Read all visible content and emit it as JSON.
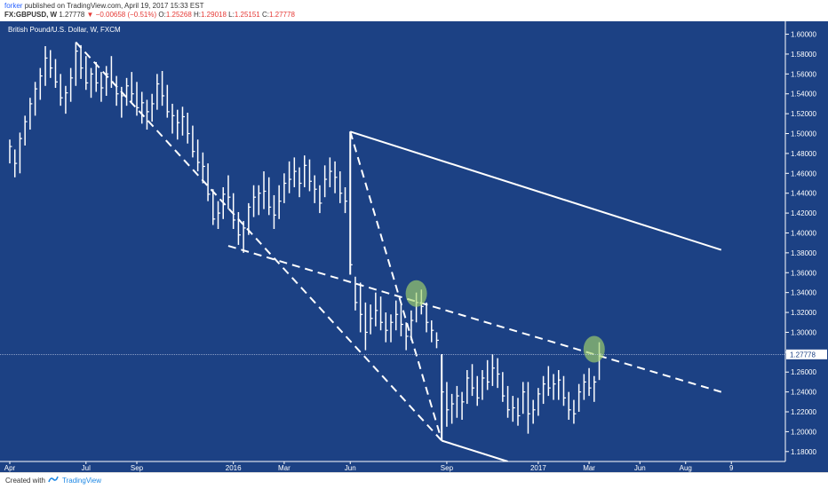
{
  "header": {
    "user": "forker",
    "published": "published on TradingView.com, April 19, 2017 15:33 EST",
    "symbol": "FX:GBPUSD, W",
    "last": "1.27778",
    "change": "−0.00658 (−0.51%)",
    "o_label": "O:",
    "o_value": "1.25268",
    "h_label": "H:",
    "h_value": "1.29018",
    "l_label": "L:",
    "l_value": "1.25151",
    "c_label": "C:",
    "c_value": "1.27778"
  },
  "chart_data": {
    "type": "bar",
    "title": "British Pound/U.S. Dollar, W, FXCM",
    "background": "#1c4184",
    "bar_color": "#ffffff",
    "x_tick_labels": [
      "Apr",
      "Jul",
      "Sep",
      "2016",
      "Mar",
      "Jun",
      "Sep",
      "2017",
      "Mar",
      "Jun",
      "Aug",
      "9"
    ],
    "y_tick_labels": [
      "1.60000",
      "1.58000",
      "1.56000",
      "1.54000",
      "1.52000",
      "1.50000",
      "1.48000",
      "1.46000",
      "1.44000",
      "1.42000",
      "1.40000",
      "1.38000",
      "1.36000",
      "1.34000",
      "1.32000",
      "1.30000",
      "1.28000",
      "1.26000",
      "1.24000",
      "1.22000",
      "1.20000",
      "1.18000"
    ],
    "ylim": [
      1.17,
      1.613
    ],
    "last_price": "1.27778",
    "last_price_value": 1.27778,
    "trendlines": [
      {
        "style": "solid",
        "from": [
          67,
          1.502
        ],
        "to": [
          140,
          1.383
        ]
      },
      {
        "style": "solid",
        "from": [
          67,
          1.502
        ],
        "to": [
          67,
          1.358
        ]
      },
      {
        "style": "solid",
        "from": [
          85,
          1.278
        ],
        "to": [
          85,
          1.191
        ]
      },
      {
        "style": "solid",
        "from": [
          85,
          1.191
        ],
        "to": [
          98,
          1.17
        ]
      },
      {
        "style": "dashed",
        "from": [
          13,
          1.592
        ],
        "to": [
          85,
          1.191
        ]
      },
      {
        "style": "dashed",
        "from": [
          67,
          1.502
        ],
        "to": [
          85,
          1.191
        ]
      },
      {
        "style": "dashed",
        "from": [
          43,
          1.387
        ],
        "to": [
          140,
          1.24
        ]
      }
    ],
    "highlights": [
      {
        "x": 80,
        "y": 1.339,
        "color": "#a5d66b"
      },
      {
        "x": 115,
        "y": 1.283,
        "color": "#a5d66b"
      }
    ],
    "bars": [
      [
        1.494,
        1.47,
        1.487
      ],
      [
        1.484,
        1.456,
        1.47
      ],
      [
        1.501,
        1.46,
        1.495
      ],
      [
        1.518,
        1.488,
        1.512
      ],
      [
        1.536,
        1.504,
        1.53
      ],
      [
        1.552,
        1.518,
        1.545
      ],
      [
        1.566,
        1.534,
        1.558
      ],
      [
        1.588,
        1.548,
        1.576
      ],
      [
        1.584,
        1.556,
        1.566
      ],
      [
        1.575,
        1.546,
        1.552
      ],
      [
        1.56,
        1.528,
        1.536
      ],
      [
        1.548,
        1.52,
        1.541
      ],
      [
        1.566,
        1.532,
        1.556
      ],
      [
        1.592,
        1.548,
        1.583
      ],
      [
        1.589,
        1.555,
        1.566
      ],
      [
        1.578,
        1.544,
        1.551
      ],
      [
        1.566,
        1.536,
        1.56
      ],
      [
        1.572,
        1.542,
        1.551
      ],
      [
        1.562,
        1.532,
        1.546
      ],
      [
        1.568,
        1.538,
        1.56
      ],
      [
        1.578,
        1.546,
        1.552
      ],
      [
        1.558,
        1.528,
        1.54
      ],
      [
        1.547,
        1.516,
        1.538
      ],
      [
        1.556,
        1.528,
        1.548
      ],
      [
        1.562,
        1.532,
        1.54
      ],
      [
        1.552,
        1.518,
        1.526
      ],
      [
        1.542,
        1.51,
        1.531
      ],
      [
        1.534,
        1.504,
        1.522
      ],
      [
        1.54,
        1.512,
        1.53
      ],
      [
        1.56,
        1.524,
        1.55
      ],
      [
        1.563,
        1.528,
        1.538
      ],
      [
        1.549,
        1.516,
        1.522
      ],
      [
        1.53,
        1.5,
        1.518
      ],
      [
        1.524,
        1.494,
        1.511
      ],
      [
        1.527,
        1.498,
        1.517
      ],
      [
        1.521,
        1.49,
        1.5
      ],
      [
        1.508,
        1.476,
        1.482
      ],
      [
        1.494,
        1.462,
        1.471
      ],
      [
        1.481,
        1.45,
        1.467
      ],
      [
        1.47,
        1.432,
        1.439
      ],
      [
        1.444,
        1.408,
        1.414
      ],
      [
        1.432,
        1.404,
        1.42
      ],
      [
        1.446,
        1.414,
        1.439
      ],
      [
        1.458,
        1.424,
        1.436
      ],
      [
        1.44,
        1.404,
        1.413
      ],
      [
        1.421,
        1.388,
        1.398
      ],
      [
        1.412,
        1.38,
        1.405
      ],
      [
        1.43,
        1.398,
        1.426
      ],
      [
        1.448,
        1.416,
        1.436
      ],
      [
        1.448,
        1.418,
        1.44
      ],
      [
        1.462,
        1.424,
        1.442
      ],
      [
        1.456,
        1.418,
        1.426
      ],
      [
        1.438,
        1.404,
        1.418
      ],
      [
        1.448,
        1.414,
        1.432
      ],
      [
        1.46,
        1.43,
        1.45
      ],
      [
        1.472,
        1.44,
        1.454
      ],
      [
        1.476,
        1.446,
        1.462
      ],
      [
        1.466,
        1.436,
        1.45
      ],
      [
        1.478,
        1.446,
        1.468
      ],
      [
        1.474,
        1.442,
        1.452
      ],
      [
        1.458,
        1.43,
        1.444
      ],
      [
        1.448,
        1.42,
        1.43
      ],
      [
        1.468,
        1.436,
        1.454
      ],
      [
        1.476,
        1.446,
        1.462
      ],
      [
        1.472,
        1.44,
        1.456
      ],
      [
        1.462,
        1.43,
        1.44
      ],
      [
        1.446,
        1.42,
        1.432
      ],
      [
        1.502,
        1.358,
        1.368
      ],
      [
        1.356,
        1.322,
        1.33
      ],
      [
        1.35,
        1.3,
        1.318
      ],
      [
        1.33,
        1.282,
        1.3
      ],
      [
        1.328,
        1.298,
        1.314
      ],
      [
        1.34,
        1.306,
        1.322
      ],
      [
        1.336,
        1.302,
        1.31
      ],
      [
        1.32,
        1.29,
        1.302
      ],
      [
        1.318,
        1.29,
        1.31
      ],
      [
        1.332,
        1.302,
        1.318
      ],
      [
        1.328,
        1.296,
        1.308
      ],
      [
        1.31,
        1.282,
        1.296
      ],
      [
        1.322,
        1.292,
        1.312
      ],
      [
        1.34,
        1.31,
        1.33
      ],
      [
        1.343,
        1.318,
        1.326
      ],
      [
        1.33,
        1.3,
        1.31
      ],
      [
        1.312,
        1.29,
        1.302
      ],
      [
        1.3,
        1.284,
        1.292
      ],
      [
        1.278,
        1.191,
        1.24
      ],
      [
        1.25,
        1.205,
        1.222
      ],
      [
        1.238,
        1.208,
        1.228
      ],
      [
        1.246,
        1.214,
        1.236
      ],
      [
        1.24,
        1.212,
        1.23
      ],
      [
        1.262,
        1.228,
        1.254
      ],
      [
        1.268,
        1.236,
        1.244
      ],
      [
        1.256,
        1.226,
        1.234
      ],
      [
        1.262,
        1.232,
        1.254
      ],
      [
        1.272,
        1.242,
        1.25
      ],
      [
        1.278,
        1.246,
        1.264
      ],
      [
        1.274,
        1.244,
        1.258
      ],
      [
        1.26,
        1.23,
        1.236
      ],
      [
        1.246,
        1.214,
        1.222
      ],
      [
        1.236,
        1.21,
        1.224
      ],
      [
        1.234,
        1.206,
        1.216
      ],
      [
        1.25,
        1.218,
        1.24
      ],
      [
        1.25,
        1.198,
        1.218
      ],
      [
        1.232,
        1.208,
        1.222
      ],
      [
        1.244,
        1.216,
        1.238
      ],
      [
        1.256,
        1.228,
        1.248
      ],
      [
        1.266,
        1.236,
        1.244
      ],
      [
        1.258,
        1.232,
        1.248
      ],
      [
        1.262,
        1.232,
        1.252
      ],
      [
        1.256,
        1.226,
        1.234
      ],
      [
        1.24,
        1.212,
        1.222
      ],
      [
        1.232,
        1.208,
        1.218
      ],
      [
        1.248,
        1.22,
        1.24
      ],
      [
        1.258,
        1.232,
        1.25
      ],
      [
        1.264,
        1.236,
        1.244
      ],
      [
        1.256,
        1.23,
        1.25
      ],
      [
        1.29,
        1.252,
        1.278
      ]
    ]
  },
  "footer": {
    "created_with": "Created with",
    "brand": "TradingView"
  }
}
